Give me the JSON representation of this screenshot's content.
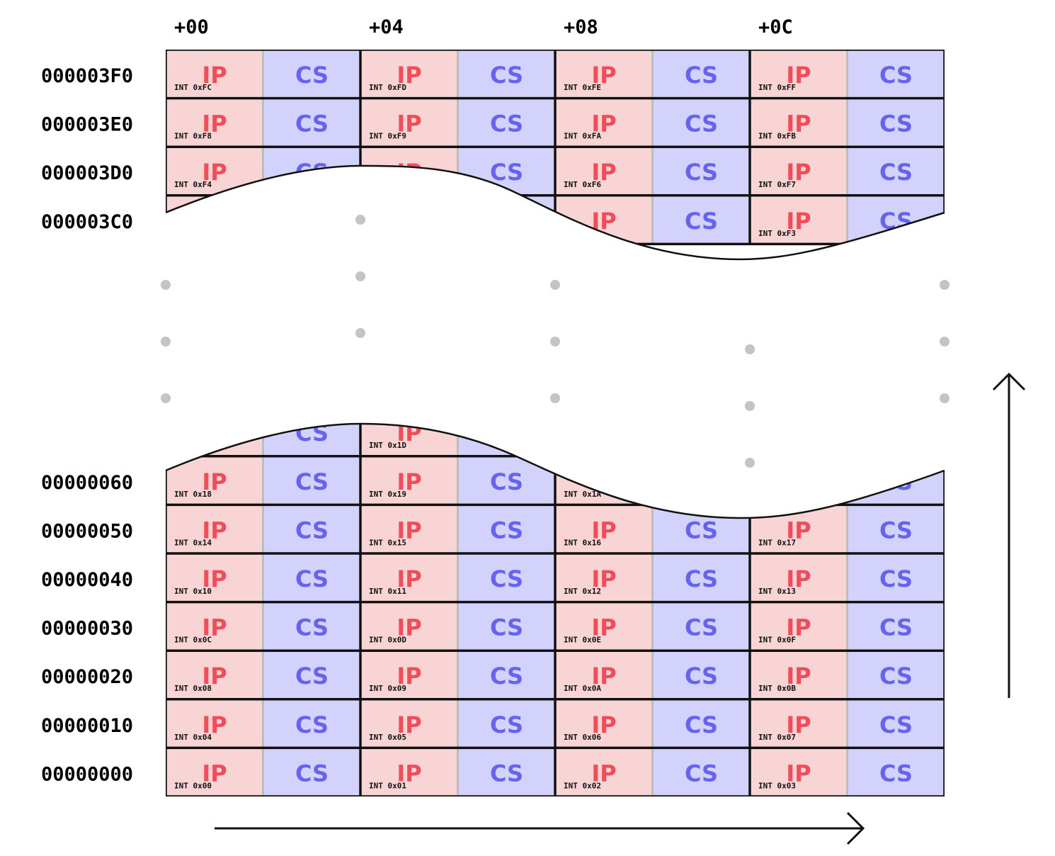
{
  "column_headers": [
    "+00",
    "+04",
    "+08",
    "+0C"
  ],
  "field_labels": {
    "ip": "IP",
    "cs": "CS"
  },
  "colors": {
    "ip_fill": "#f9d4d5",
    "cs_fill": "#d3d2fc",
    "ip_text": "#ef4d5a",
    "cs_text": "#6664ee",
    "grid": "#111111",
    "dots": "#c4c4c4"
  },
  "top_section": {
    "rows": [
      {
        "address": "000003F0",
        "vectors": [
          "INT 0xFC",
          "INT 0xFD",
          "INT 0xFE",
          "INT 0xFF"
        ]
      },
      {
        "address": "000003E0",
        "vectors": [
          "INT 0xF8",
          "INT 0xF9",
          "INT 0xFA",
          "INT 0xFB"
        ]
      },
      {
        "address": "000003D0",
        "vectors": [
          "INT 0xF4",
          "",
          "INT 0xF6",
          "INT 0xF7"
        ]
      },
      {
        "address": "000003C0",
        "vectors": [
          "",
          "",
          "",
          "INT 0xF3"
        ]
      }
    ]
  },
  "bottom_section": {
    "rows": [
      {
        "address": "",
        "vectors": [
          "",
          "INT 0x1D",
          "",
          ""
        ]
      },
      {
        "address": "00000060",
        "vectors": [
          "INT 0x18",
          "INT 0x19",
          "INT 0x1A",
          ""
        ]
      },
      {
        "address": "00000050",
        "vectors": [
          "INT 0x14",
          "INT 0x15",
          "INT 0x16",
          "INT 0x17"
        ]
      },
      {
        "address": "00000040",
        "vectors": [
          "INT 0x10",
          "INT 0x11",
          "INT 0x12",
          "INT 0x13"
        ]
      },
      {
        "address": "00000030",
        "vectors": [
          "INT 0x0C",
          "INT 0x0D",
          "INT 0x0E",
          "INT 0x0F"
        ]
      },
      {
        "address": "00000020",
        "vectors": [
          "INT 0x08",
          "INT 0x09",
          "INT 0x0A",
          "INT 0x0B"
        ]
      },
      {
        "address": "00000010",
        "vectors": [
          "INT 0x04",
          "INT 0x05",
          "INT 0x06",
          "INT 0x07"
        ]
      },
      {
        "address": "00000000",
        "vectors": [
          "INT 0x00",
          "INT 0x01",
          "INT 0x02",
          "INT 0x03"
        ]
      }
    ]
  },
  "arrows": {
    "horizontal": "right-arrow",
    "vertical": "up-arrow"
  }
}
